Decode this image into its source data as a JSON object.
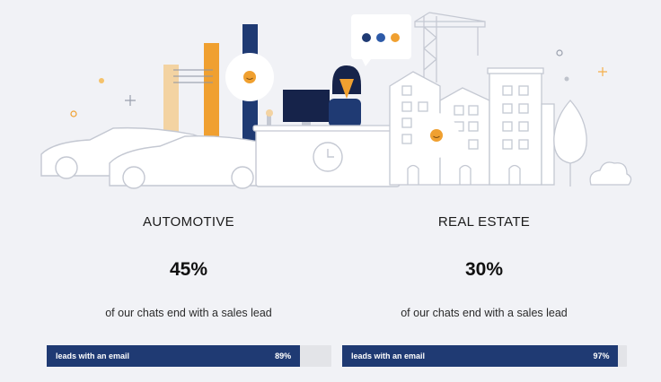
{
  "illustration": {
    "chat_bubble_dot_colors": [
      "#1f3a73",
      "#2d5aa8",
      "#f0a030"
    ],
    "accent_orange": "#f0a030",
    "navy": "#1f3a73"
  },
  "stats": [
    {
      "industry": "AUTOMOTIVE",
      "percent": "45%",
      "caption": "of our chats end with a sales lead",
      "bar": {
        "label": "leads with an email",
        "value_text": "89%",
        "value": 0.89
      }
    },
    {
      "industry": "REAL ESTATE",
      "percent": "30%",
      "caption": "of our chats end with a sales lead",
      "bar": {
        "label": "leads with an email",
        "value_text": "97%",
        "value": 0.97
      }
    }
  ]
}
